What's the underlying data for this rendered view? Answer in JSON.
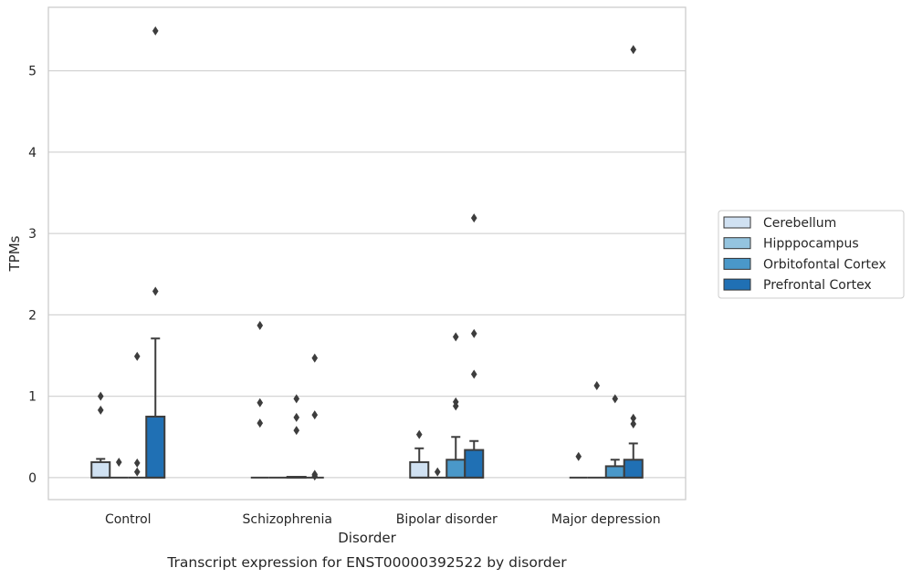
{
  "chart_data": {
    "type": "box",
    "caption": "Transcript expression for ENST00000392522 by disorder",
    "xlabel": "Disorder",
    "ylabel": "TPMs",
    "ylim": [
      -0.27,
      5.78
    ],
    "yticks": [
      0,
      1,
      2,
      3,
      4,
      5
    ],
    "grid": true,
    "legend_position": "right",
    "categories": [
      "Control",
      "Schizophrenia",
      "Bipolar disorder",
      "Major depression"
    ],
    "series": [
      {
        "name": "Cerebellum",
        "color": "#d0e1f2",
        "boxes": [
          {
            "q1": 0,
            "median": 0,
            "q3": 0.19,
            "whisker_low": 0,
            "whisker_high": 0.23,
            "outliers": [
              1.0,
              0.83
            ]
          },
          {
            "q1": 0,
            "median": 0,
            "q3": 0,
            "whisker_low": 0,
            "whisker_high": 0,
            "outliers": [
              1.87,
              0.92,
              0.67
            ]
          },
          {
            "q1": 0,
            "median": 0,
            "q3": 0.19,
            "whisker_low": 0,
            "whisker_high": 0.36,
            "outliers": [
              0.53
            ]
          },
          {
            "q1": 0,
            "median": 0,
            "q3": 0,
            "whisker_low": 0,
            "whisker_high": 0,
            "outliers": [
              0.26
            ]
          }
        ]
      },
      {
        "name": "Hipppocampus",
        "color": "#94c4df",
        "boxes": [
          {
            "q1": 0,
            "median": 0,
            "q3": 0,
            "whisker_low": 0,
            "whisker_high": 0,
            "outliers": [
              0.19
            ]
          },
          {
            "q1": 0,
            "median": 0,
            "q3": 0,
            "whisker_low": 0,
            "whisker_high": 0,
            "outliers": []
          },
          {
            "q1": 0,
            "median": 0,
            "q3": 0,
            "whisker_low": 0,
            "whisker_high": 0,
            "outliers": [
              0.07
            ]
          },
          {
            "q1": 0,
            "median": 0,
            "q3": 0,
            "whisker_low": 0,
            "whisker_high": 0,
            "outliers": [
              1.13
            ]
          }
        ]
      },
      {
        "name": "Orbitofontal Cortex",
        "color": "#4a98c9",
        "boxes": [
          {
            "q1": 0,
            "median": 0,
            "q3": 0,
            "whisker_low": 0,
            "whisker_high": 0,
            "outliers": [
              1.49,
              0.18,
              0.07
            ]
          },
          {
            "q1": 0,
            "median": 0,
            "q3": 0.01,
            "whisker_low": 0,
            "whisker_high": 0.01,
            "outliers": [
              0.97,
              0.74,
              0.58
            ]
          },
          {
            "q1": 0,
            "median": 0,
            "q3": 0.22,
            "whisker_low": 0,
            "whisker_high": 0.5,
            "outliers": [
              1.73,
              0.88,
              0.93
            ]
          },
          {
            "q1": 0,
            "median": 0,
            "q3": 0.14,
            "whisker_low": 0,
            "whisker_high": 0.22,
            "outliers": [
              0.97
            ]
          }
        ]
      },
      {
        "name": "Prefrontal Cortex",
        "color": "#2070b4",
        "boxes": [
          {
            "q1": 0,
            "median": 0,
            "q3": 0.75,
            "whisker_low": 0,
            "whisker_high": 1.71,
            "outliers": [
              5.49,
              2.29
            ]
          },
          {
            "q1": 0,
            "median": 0,
            "q3": 0,
            "whisker_low": 0,
            "whisker_high": 0,
            "outliers": [
              1.47,
              0.77,
              0.04,
              0.02
            ]
          },
          {
            "q1": 0,
            "median": 0,
            "q3": 0.34,
            "whisker_low": 0,
            "whisker_high": 0.45,
            "outliers": [
              3.19,
              1.77,
              1.27
            ]
          },
          {
            "q1": 0,
            "median": 0,
            "q3": 0.22,
            "whisker_low": 0,
            "whisker_high": 0.42,
            "outliers": [
              5.26,
              0.73,
              0.66
            ]
          }
        ]
      }
    ]
  }
}
